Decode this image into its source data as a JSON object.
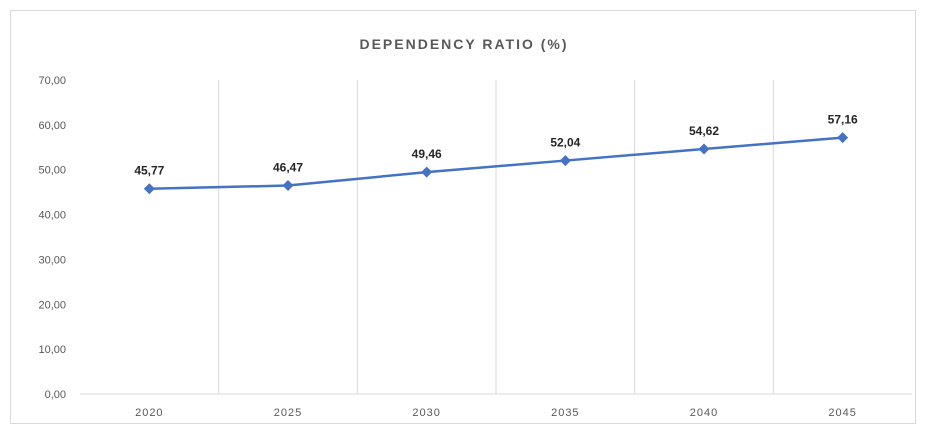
{
  "chart_data": {
    "type": "line",
    "title": "DEPENDENCY RATIO (%)",
    "xlabel": "",
    "ylabel": "",
    "categories": [
      "2020",
      "2025",
      "2030",
      "2035",
      "2040",
      "2045"
    ],
    "series": [
      {
        "values": [
          45.77,
          46.47,
          49.46,
          52.04,
          54.62,
          57.16
        ],
        "labels": [
          "45,77",
          "46,47",
          "49,46",
          "52,04",
          "54,62",
          "57,16"
        ],
        "color": "#4472c4"
      }
    ],
    "ylim": [
      0,
      70
    ],
    "yticks": [
      0,
      10,
      20,
      30,
      40,
      50,
      60,
      70
    ],
    "ytick_labels": [
      "0,00",
      "10,00",
      "20,00",
      "30,00",
      "40,00",
      "50,00",
      "60,00",
      "70,00"
    ],
    "grid": "vertical",
    "legend": "none",
    "marker": "diamond"
  }
}
